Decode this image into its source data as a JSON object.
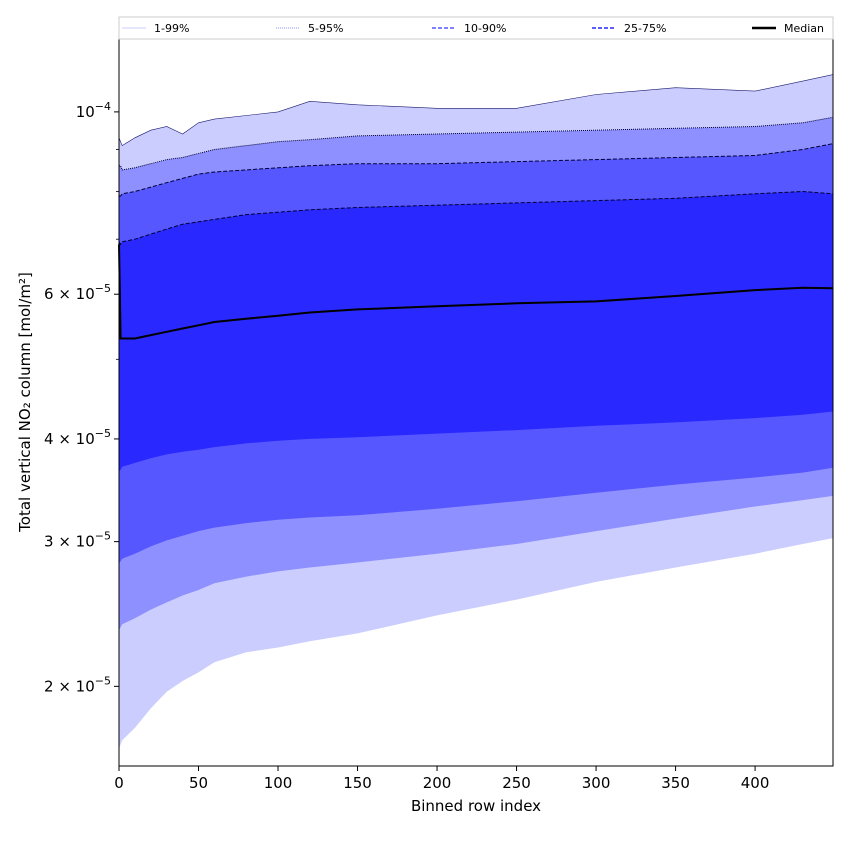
{
  "chart_data": {
    "type": "area",
    "xlabel": "Binned row index",
    "ylabel": "Total vertical NO₂ column [mol/m²]",
    "y_scale": "log",
    "xlim": [
      0,
      449
    ],
    "ylim": [
      1.6e-05,
      0.000123
    ],
    "x_ticks": [
      0,
      50,
      100,
      150,
      200,
      250,
      300,
      350,
      400
    ],
    "y_ticks": [
      {
        "value": 2e-05,
        "mantissa": "2",
        "exponent": "-5"
      },
      {
        "value": 3e-05,
        "mantissa": "3",
        "exponent": "-5"
      },
      {
        "value": 4e-05,
        "mantissa": "4",
        "exponent": "-5"
      },
      {
        "value": 6e-05,
        "mantissa": "6",
        "exponent": "-5"
      },
      {
        "value": 0.0001,
        "mantissa": "10",
        "exponent": "-4"
      }
    ],
    "x": [
      0,
      1,
      2,
      10,
      20,
      30,
      40,
      50,
      60,
      80,
      100,
      120,
      150,
      200,
      250,
      300,
      350,
      400,
      430,
      449
    ],
    "bands": [
      {
        "name": "1-99%",
        "fill": "#cccdff",
        "lower": [
          1.68e-05,
          1.7e-05,
          1.72e-05,
          1.78e-05,
          1.88e-05,
          1.97e-05,
          2.03e-05,
          2.08e-05,
          2.14e-05,
          2.2e-05,
          2.23e-05,
          2.27e-05,
          2.32e-05,
          2.44e-05,
          2.55e-05,
          2.68e-05,
          2.79e-05,
          2.9e-05,
          2.98e-05,
          3.03e-05
        ],
        "upper": [
          9.3e-05,
          9.2e-05,
          9.1e-05,
          9.3e-05,
          9.5e-05,
          9.6e-05,
          9.4e-05,
          9.7e-05,
          9.8e-05,
          9.9e-05,
          0.0001,
          0.000103,
          0.000102,
          0.000101,
          0.000101,
          0.000105,
          0.000107,
          0.000106,
          0.000109,
          0.000111
        ]
      },
      {
        "name": "5-95%",
        "fill": "#8e90ff",
        "lower": [
          2.34e-05,
          2.36e-05,
          2.38e-05,
          2.42e-05,
          2.48e-05,
          2.53e-05,
          2.58e-05,
          2.62e-05,
          2.67e-05,
          2.72e-05,
          2.76e-05,
          2.79e-05,
          2.83e-05,
          2.9e-05,
          2.98e-05,
          3.09e-05,
          3.2e-05,
          3.31e-05,
          3.37e-05,
          3.41e-05
        ],
        "upper": [
          8.6e-05,
          8.6e-05,
          8.5e-05,
          8.55e-05,
          8.65e-05,
          8.75e-05,
          8.8e-05,
          8.9e-05,
          9e-05,
          9.1e-05,
          9.2e-05,
          9.25e-05,
          9.35e-05,
          9.4e-05,
          9.45e-05,
          9.5e-05,
          9.55e-05,
          9.6e-05,
          9.7e-05,
          9.85e-05
        ]
      },
      {
        "name": "10-90%",
        "fill": "#5757ff",
        "lower": [
          2.82e-05,
          2.84e-05,
          2.86e-05,
          2.9e-05,
          2.96e-05,
          3.01e-05,
          3.05e-05,
          3.09e-05,
          3.12e-05,
          3.16e-05,
          3.19e-05,
          3.21e-05,
          3.23e-05,
          3.29e-05,
          3.36e-05,
          3.44e-05,
          3.52e-05,
          3.59e-05,
          3.64e-05,
          3.69e-05
        ],
        "upper": [
          7.9e-05,
          7.9e-05,
          7.95e-05,
          8e-05,
          8.1e-05,
          8.2e-05,
          8.3e-05,
          8.4e-05,
          8.45e-05,
          8.5e-05,
          8.55e-05,
          8.6e-05,
          8.65e-05,
          8.65e-05,
          8.7e-05,
          8.75e-05,
          8.8e-05,
          8.85e-05,
          9e-05,
          9.15e-05
        ]
      },
      {
        "name": "25-75%",
        "fill": "#2828ff",
        "lower": [
          3.65e-05,
          3.67e-05,
          3.7e-05,
          3.74e-05,
          3.79e-05,
          3.83e-05,
          3.86e-05,
          3.88e-05,
          3.91e-05,
          3.95e-05,
          3.98e-05,
          4e-05,
          4.02e-05,
          4.06e-05,
          4.1e-05,
          4.15e-05,
          4.19e-05,
          4.24e-05,
          4.28e-05,
          4.32e-05
        ],
        "upper": [
          6.95e-05,
          6.9e-05,
          6.95e-05,
          7e-05,
          7.1e-05,
          7.2e-05,
          7.3e-05,
          7.35e-05,
          7.4e-05,
          7.5e-05,
          7.55e-05,
          7.6e-05,
          7.65e-05,
          7.7e-05,
          7.75e-05,
          7.8e-05,
          7.85e-05,
          7.95e-05,
          8e-05,
          7.95e-05
        ]
      }
    ],
    "median": {
      "name": "Median",
      "color": "#000000",
      "values": [
        6.9e-05,
        5.3e-05,
        5.3e-05,
        5.3e-05,
        5.35e-05,
        5.4e-05,
        5.45e-05,
        5.5e-05,
        5.55e-05,
        5.6e-05,
        5.65e-05,
        5.7e-05,
        5.75e-05,
        5.8e-05,
        5.85e-05,
        5.88e-05,
        5.97e-05,
        6.07e-05,
        6.11e-05,
        6.1e-05
      ]
    },
    "legend": {
      "position": "top",
      "entries": [
        {
          "label": "1-99%",
          "color": "#cccdff",
          "style": "solid-thin"
        },
        {
          "label": "5-95%",
          "color": "#8e90ff",
          "style": "dotted"
        },
        {
          "label": "10-90%",
          "color": "#5757ff",
          "style": "dashed"
        },
        {
          "label": "25-75%",
          "color": "#2828ff",
          "style": "dashed"
        },
        {
          "label": "Median",
          "color": "#000000",
          "style": "solid-thick"
        }
      ]
    }
  }
}
